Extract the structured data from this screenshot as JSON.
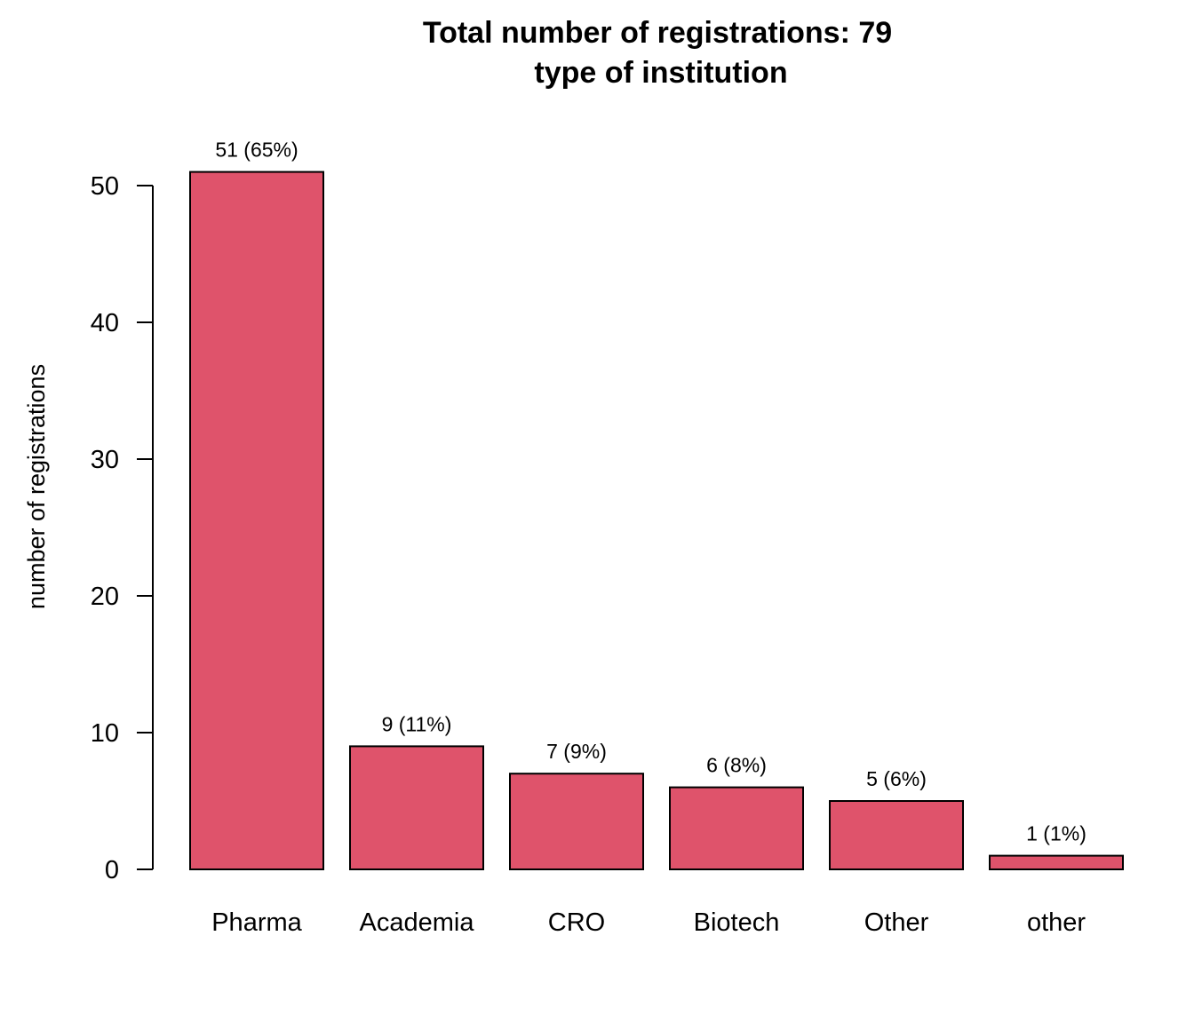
{
  "chart_data": {
    "type": "bar",
    "title": "Total number of registrations: 79",
    "subtitle": "type of institution",
    "xlabel": "",
    "ylabel": "number of registrations",
    "categories": [
      "Pharma",
      "Academia",
      "CRO",
      "Biotech",
      "Other",
      "other"
    ],
    "values": [
      51,
      9,
      7,
      6,
      5,
      1
    ],
    "data_labels": [
      "51 (65%)",
      "9 (11%)",
      "7 (9%)",
      "6 (8%)",
      "5 (6%)",
      "1 (1%)"
    ],
    "ylim": [
      0,
      50
    ],
    "yticks": [
      0,
      10,
      20,
      30,
      40,
      50
    ],
    "ytick_labels": [
      "0",
      "10",
      "20",
      "30",
      "40",
      "50"
    ],
    "grid": false,
    "legend": "none",
    "bar_color": "#DF536B",
    "bar_edge_color": "#000000"
  }
}
